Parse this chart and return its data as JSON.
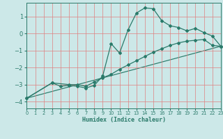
{
  "xlabel": "Humidex (Indice chaleur)",
  "background_color": "#cce8e8",
  "grid_color": "#e08080",
  "line_color": "#2a7a6a",
  "xlim": [
    0,
    23
  ],
  "ylim": [
    -4.4,
    1.8
  ],
  "yticks": [
    -4,
    -3,
    -2,
    -1,
    0,
    1
  ],
  "xticks": [
    0,
    1,
    2,
    3,
    4,
    5,
    6,
    7,
    8,
    9,
    10,
    11,
    12,
    13,
    14,
    15,
    16,
    17,
    18,
    19,
    20,
    21,
    22,
    23
  ],
  "line1_x": [
    0,
    3,
    4,
    5,
    6,
    7,
    8,
    9,
    10,
    11,
    12,
    13,
    14,
    15,
    16,
    17,
    18,
    19,
    20,
    21,
    22,
    23
  ],
  "line1_y": [
    -3.8,
    -2.9,
    -3.1,
    -3.05,
    -3.1,
    -3.2,
    -3.05,
    -2.5,
    -0.6,
    -1.15,
    0.2,
    1.2,
    1.5,
    1.45,
    0.75,
    0.45,
    0.35,
    0.15,
    0.3,
    0.05,
    -0.15,
    -0.75
  ],
  "line2_x": [
    0,
    3,
    5,
    6,
    7,
    8,
    9,
    10,
    11,
    12,
    13,
    14,
    15,
    16,
    17,
    18,
    19,
    20,
    21,
    22,
    23
  ],
  "line2_y": [
    -3.8,
    -2.9,
    -3.0,
    -3.0,
    -3.1,
    -2.85,
    -2.6,
    -2.4,
    -2.1,
    -1.85,
    -1.6,
    -1.35,
    -1.1,
    -0.9,
    -0.7,
    -0.55,
    -0.45,
    -0.4,
    -0.35,
    -0.7,
    -0.75
  ],
  "trend_x": [
    0,
    23
  ],
  "trend_y": [
    -3.8,
    -0.75
  ]
}
